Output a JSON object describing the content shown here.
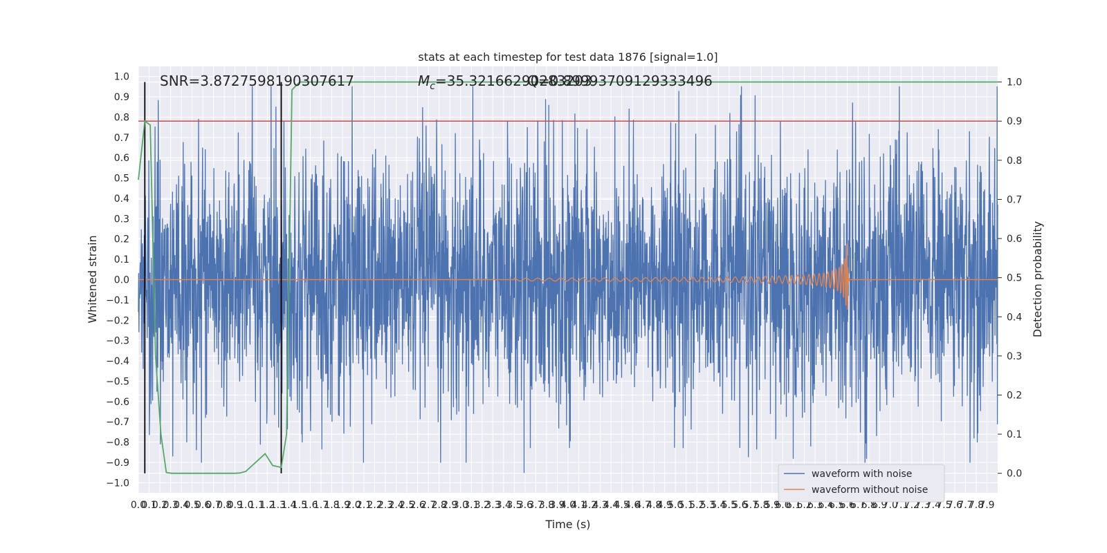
{
  "chart_data": {
    "type": "line",
    "title": "stats at each timestep for test data 1876 [signal=1.0]",
    "xlabel": "Time (s)",
    "ylabel": "Whitened strain",
    "ylabel_right": "Detection probability",
    "xlim": [
      0.0,
      8.0
    ],
    "ylim": [
      -1.05,
      1.05
    ],
    "ylim_right": [
      -0.05,
      1.04
    ],
    "grid": true,
    "legend_position": "lower right",
    "x_ticks": [
      "0.0",
      "0.1",
      "0.2",
      "0.3",
      "0.4",
      "0.5",
      "0.6",
      "0.7",
      "0.8",
      "0.9",
      "1.0",
      "1.1",
      "1.2",
      "1.3",
      "1.4",
      "1.5",
      "1.6",
      "1.7",
      "1.8",
      "1.9",
      "2.0",
      "2.1",
      "2.2",
      "2.3",
      "2.4",
      "2.5",
      "2.6",
      "2.7",
      "2.8",
      "2.9",
      "3.0",
      "3.1",
      "3.2",
      "3.3",
      "3.4",
      "3.5",
      "3.6",
      "3.7",
      "3.8",
      "3.9",
      "4.0",
      "4.1",
      "4.2",
      "4.3",
      "4.4",
      "4.5",
      "4.6",
      "4.7",
      "4.8",
      "4.9",
      "5.0",
      "5.1",
      "5.2",
      "5.3",
      "5.4",
      "5.5",
      "5.6",
      "5.7",
      "5.8",
      "5.9",
      "6.0",
      "6.1",
      "6.2",
      "6.3",
      "6.4",
      "6.5",
      "6.6",
      "6.7",
      "6.8",
      "6.9",
      "7.0",
      "7.1",
      "7.2",
      "7.3",
      "7.4",
      "7.5",
      "7.6",
      "7.7",
      "7.8",
      "7.9"
    ],
    "y_ticks": [
      "1.0",
      "0.9",
      "0.8",
      "0.7",
      "0.6",
      "0.5",
      "0.4",
      "0.3",
      "0.2",
      "0.1",
      "0.0",
      "−0.1",
      "−0.2",
      "−0.3",
      "−0.4",
      "−0.5",
      "−0.6",
      "−0.7",
      "−0.8",
      "−0.9",
      "−1.0"
    ],
    "y_ticks_right": [
      "1.0",
      "0.9",
      "0.8",
      "0.7",
      "0.6",
      "0.5",
      "0.4",
      "0.3",
      "0.2",
      "0.1",
      "0.0"
    ],
    "annotations": {
      "snr": "SNR=3.8727598190307617",
      "mc_symbol": "M",
      "mc_subscript": "c",
      "mc_text": "=35.32166290283203",
      "overlap_text": "Q=0.89993709129333496"
    },
    "threshold_line": {
      "axis": "right",
      "value": 0.9,
      "color": "#c44e52"
    },
    "vertical_markers": {
      "x": [
        0.06,
        1.33
      ],
      "color": "#000000"
    },
    "series": [
      {
        "name": "waveform with noise",
        "color": "#4c72b0",
        "description_envelope": {
          "typical_amplitude": 0.4,
          "max_peak": 1.0,
          "min_peak": -0.95
        },
        "highlight_peaks": [
          {
            "x": 0.45,
            "y": 1.0
          },
          {
            "x": 0.45,
            "y": -0.8
          },
          {
            "x": 1.09,
            "y": 0.9
          },
          {
            "x": 1.09,
            "y": -0.6
          },
          {
            "x": 1.28,
            "y": 0.85
          },
          {
            "x": 2.79,
            "y": 0.98
          },
          {
            "x": 2.79,
            "y": -0.7
          },
          {
            "x": 3.05,
            "y": -0.9
          },
          {
            "x": 3.59,
            "y": -0.95
          },
          {
            "x": 4.57,
            "y": 0.84
          },
          {
            "x": 6.26,
            "y": 0.88
          },
          {
            "x": 6.26,
            "y": -0.82
          },
          {
            "x": 6.65,
            "y": 0.87
          },
          {
            "x": 6.78,
            "y": -0.88
          },
          {
            "x": 7.81,
            "y": 0.82
          },
          {
            "x": 7.81,
            "y": -0.8
          }
        ]
      },
      {
        "name": "waveform without noise",
        "color": "#dd8452",
        "chirp": {
          "start_x": 3.5,
          "merger_x": 6.6,
          "peak_amplitude": 0.22,
          "ringdown_end_x": 6.62
        }
      },
      {
        "name": "detection probability",
        "axis": "right",
        "color": "#55a868",
        "x": [
          0.0,
          0.06,
          0.11,
          0.16,
          0.21,
          0.26,
          0.31,
          0.5,
          0.8,
          0.9,
          0.95,
          1.0,
          1.1,
          1.18,
          1.25,
          1.33,
          1.38,
          1.43,
          1.5,
          2.0,
          3.0,
          4.0,
          5.0,
          6.0,
          7.0,
          8.0
        ],
        "values": [
          0.75,
          0.9,
          0.89,
          0.3,
          0.1,
          0.002,
          0.0,
          0.0,
          0.0,
          0.0,
          0.001,
          0.005,
          0.03,
          0.05,
          0.02,
          0.015,
          0.1,
          0.98,
          1.0,
          1.0,
          1.0,
          1.0,
          1.0,
          1.0,
          1.0,
          1.0
        ]
      }
    ]
  }
}
